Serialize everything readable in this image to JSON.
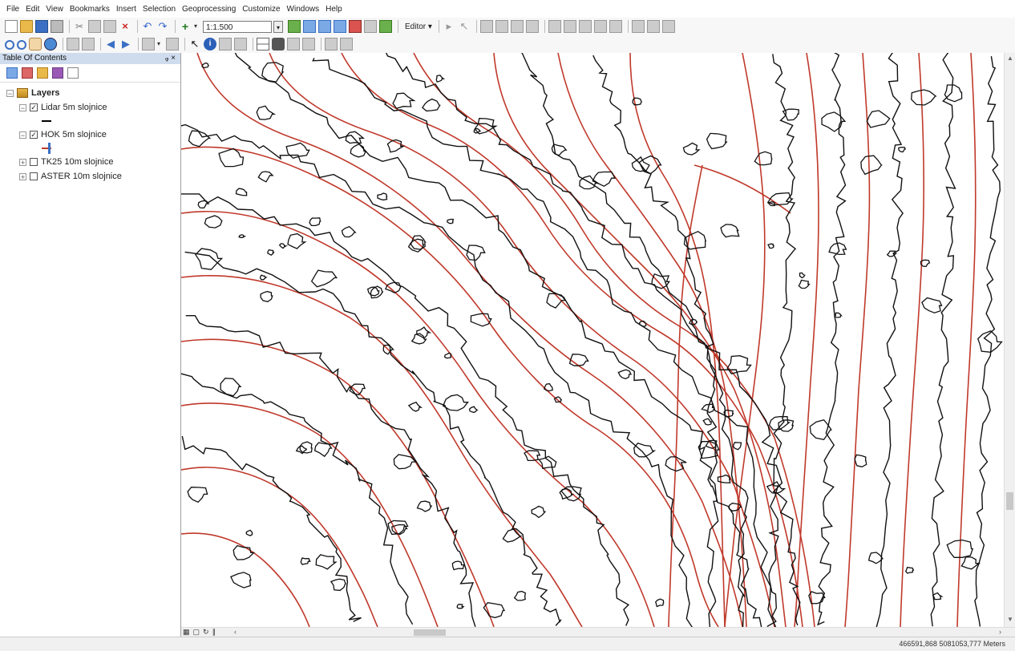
{
  "menu": [
    "File",
    "Edit",
    "View",
    "Bookmarks",
    "Insert",
    "Selection",
    "Geoprocessing",
    "Customize",
    "Windows",
    "Help"
  ],
  "toolbar": {
    "scale_value": "1:1.500",
    "editor_label": "Editor ▾"
  },
  "toc": {
    "title": "Table Of Contents",
    "controls": "ᵩ ×",
    "root_label": "Layers",
    "layers": [
      {
        "name": "Lidar 5m slojnice",
        "checked": true,
        "expanded": true,
        "symbol_color": "#000000"
      },
      {
        "name": "HOK 5m slojnice",
        "checked": true,
        "expanded": true,
        "symbol_color": "#c0392b"
      },
      {
        "name": "TK25 10m slojnice",
        "checked": false,
        "expanded": false
      },
      {
        "name": "ASTER 10m slojnice",
        "checked": false,
        "expanded": false
      }
    ]
  },
  "map": {
    "primary_contour_color": "#000000",
    "secondary_contour_color": "#c0392b"
  },
  "status": {
    "coordinates": "466591,868 5081053,777 Meters"
  },
  "icons": [
    "new-document-icon",
    "open-folder-icon",
    "save-icon",
    "print-icon",
    "cut-icon",
    "delete-icon",
    "undo-icon",
    "redo-icon",
    "add-data-icon",
    "zoom-in-icon",
    "zoom-out-icon",
    "pan-icon",
    "full-extent-icon",
    "back-icon",
    "forward-icon",
    "select-icon",
    "identify-icon",
    "find-icon",
    "measure-icon"
  ]
}
